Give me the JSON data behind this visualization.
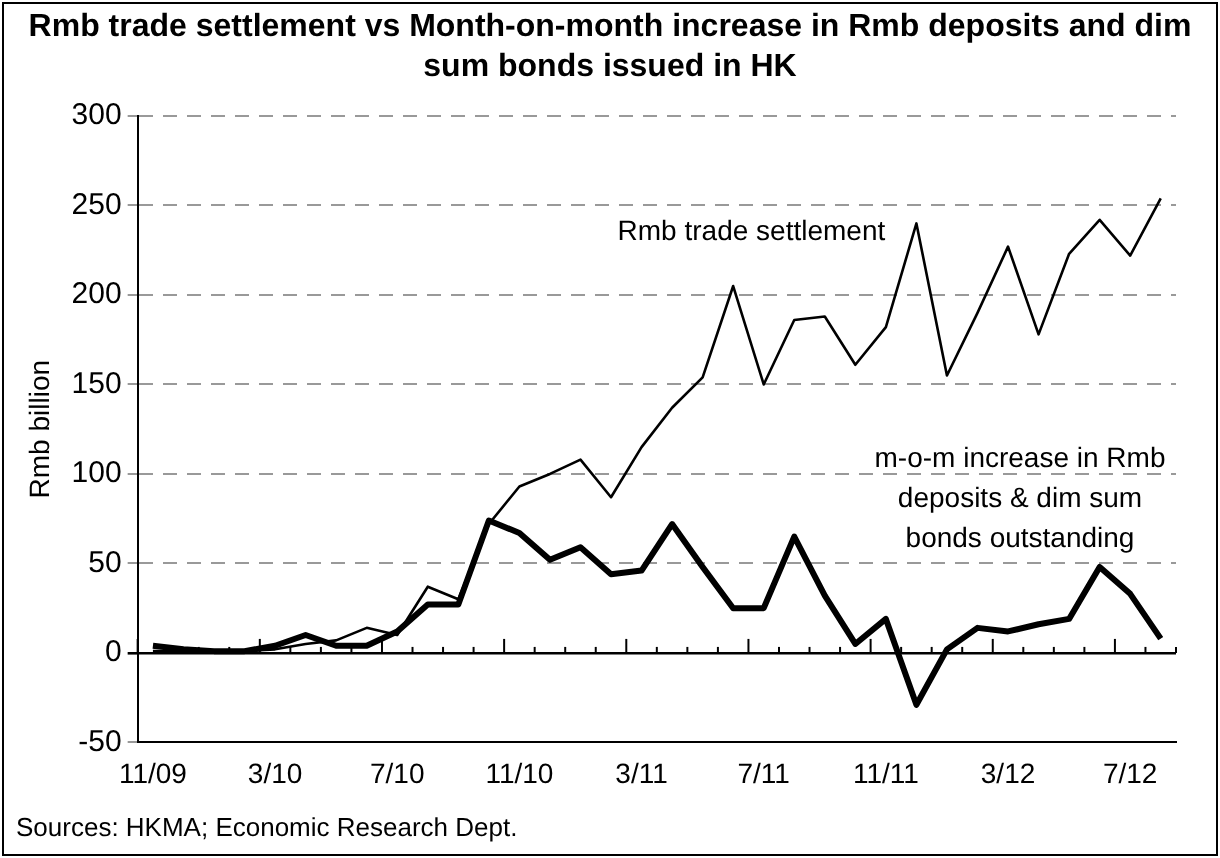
{
  "chart_data": {
    "type": "line",
    "title": "Rmb trade settlement vs Month-on-month increase in Rmb deposits and dim sum bonds issued in HK",
    "ylabel": "Rmb billion",
    "categories": [
      "11/09",
      null,
      null,
      null,
      "3/10",
      null,
      null,
      null,
      "7/10",
      null,
      null,
      null,
      "11/10",
      null,
      null,
      null,
      "3/11",
      null,
      null,
      null,
      "7/11",
      null,
      null,
      null,
      "11/11",
      null,
      null,
      null,
      "3/12",
      null,
      null,
      null,
      "7/12",
      null
    ],
    "series": [
      {
        "name": "Rmb trade settlement",
        "color": "#000000",
        "values": [
          1,
          1,
          1,
          1,
          2,
          5,
          7,
          14,
          10,
          37,
          30,
          72,
          93,
          100,
          108,
          87,
          115,
          137,
          154,
          205,
          150,
          186,
          188,
          161,
          182,
          240,
          155,
          190,
          227,
          178,
          223,
          242,
          222,
          254
        ]
      },
      {
        "name": "m-o-m increase in Rmb deposits & dim sum bonds outstanding",
        "color": "#000000",
        "values": [
          4,
          2,
          1,
          1,
          4,
          10,
          4,
          4,
          12,
          27,
          27,
          74,
          67,
          52,
          59,
          44,
          46,
          72,
          48,
          25,
          25,
          65,
          32,
          5,
          19,
          -29,
          2,
          14,
          12,
          16,
          19,
          48,
          33,
          8
        ]
      }
    ],
    "ylim": [
      -50,
      300
    ],
    "yticks": [
      -50,
      0,
      50,
      100,
      150,
      200,
      250,
      300
    ],
    "grid": "y",
    "legend": false,
    "marker": "none",
    "line_style": "solid",
    "annotations": [
      "Sources: HKMA; Economic Research Dept."
    ]
  }
}
